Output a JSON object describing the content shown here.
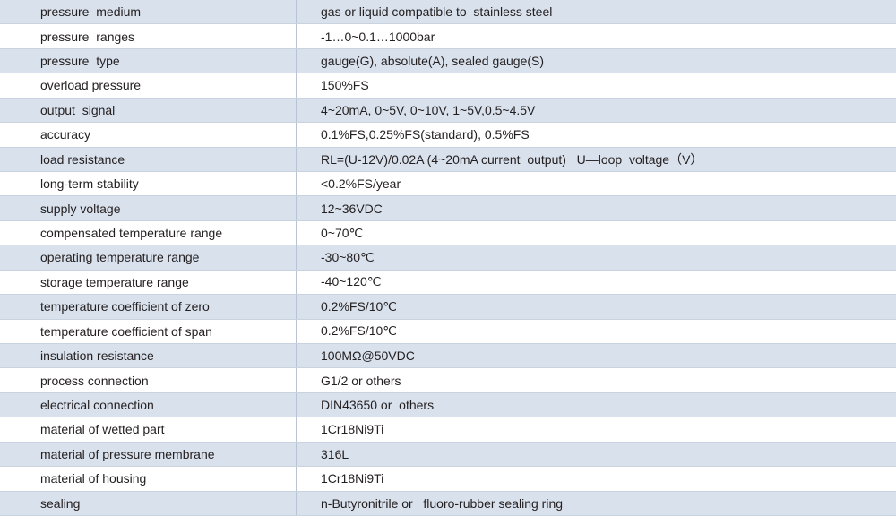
{
  "table": {
    "rows": [
      [
        "pressure  medium",
        "gas or liquid compatible to  stainless steel"
      ],
      [
        "pressure  ranges",
        "-1…0~0.1…1000bar"
      ],
      [
        "pressure  type",
        "gauge(G), absolute(A), sealed gauge(S)"
      ],
      [
        "overload pressure",
        "150%FS"
      ],
      [
        "output  signal",
        "4~20mA, 0~5V, 0~10V, 1~5V,0.5~4.5V"
      ],
      [
        "accuracy",
        "0.1%FS,0.25%FS(standard), 0.5%FS"
      ],
      [
        "load resistance",
        "RL=(U-12V)/0.02A (4~20mA current  output)   U—loop  voltage（V）"
      ],
      [
        "long-term stability",
        "<0.2%FS/year"
      ],
      [
        "supply voltage",
        "12~36VDC"
      ],
      [
        "compensated temperature range",
        "0~70℃"
      ],
      [
        "operating temperature range",
        "-30~80℃"
      ],
      [
        "storage temperature range",
        "-40~120℃"
      ],
      [
        "temperature coefficient of zero",
        "0.2%FS/10℃"
      ],
      [
        "temperature coefficient of span",
        "0.2%FS/10℃"
      ],
      [
        "insulation resistance",
        "100MΩ@50VDC"
      ],
      [
        "process connection",
        "G1/2 or others"
      ],
      [
        "electrical connection",
        "DIN43650 or  others"
      ],
      [
        "material of wetted part",
        "1Cr18Ni9Ti"
      ],
      [
        "material of pressure membrane",
        "316L"
      ],
      [
        "material of housing",
        "1Cr18Ni9Ti"
      ],
      [
        "sealing",
        "n-Butyronitrile or   fluoro-rubber sealing ring"
      ]
    ]
  }
}
